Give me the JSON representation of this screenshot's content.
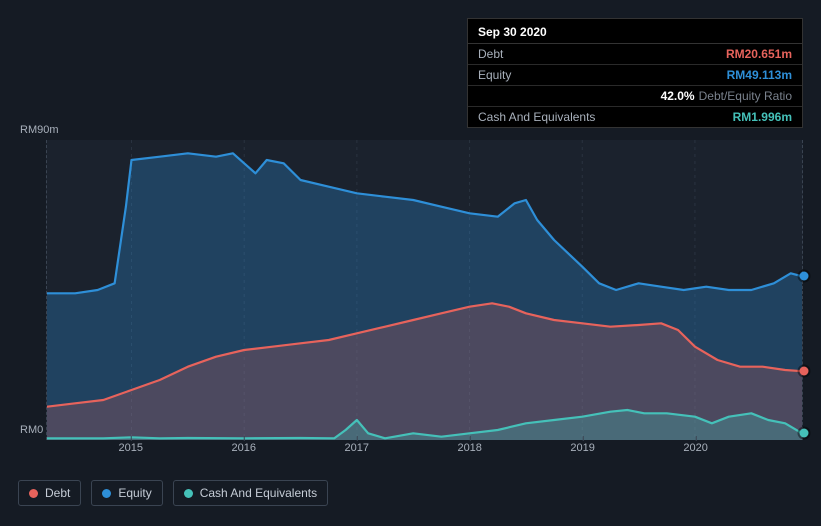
{
  "tooltip": {
    "date": "Sep 30 2020",
    "rows": [
      {
        "label": "Debt",
        "value": "RM20.651m",
        "colorKey": "debt"
      },
      {
        "label": "Equity",
        "value": "RM49.113m",
        "colorKey": "equity"
      },
      {
        "label": "",
        "pct": "42.0%",
        "pctLabel": "Debt/Equity Ratio"
      },
      {
        "label": "Cash And Equivalents",
        "value": "RM1.996m",
        "colorKey": "cash"
      }
    ]
  },
  "chart": {
    "type": "area",
    "background_color": "#1b222d",
    "page_bg": "#151b24",
    "y": {
      "min": 0,
      "max": 90,
      "top_label": "RM90m",
      "bottom_label": "RM0"
    },
    "x": {
      "min": 2014.25,
      "max": 2020.95,
      "ticks": [
        {
          "v": 2015,
          "label": "2015"
        },
        {
          "v": 2016,
          "label": "2016"
        },
        {
          "v": 2017,
          "label": "2017"
        },
        {
          "v": 2018,
          "label": "2018"
        },
        {
          "v": 2019,
          "label": "2019"
        },
        {
          "v": 2020,
          "label": "2020"
        }
      ]
    },
    "colors": {
      "debt": {
        "stroke": "#e7635c",
        "fill": "rgba(231,99,92,0.22)"
      },
      "equity": {
        "stroke": "#2e8fd8",
        "fill": "rgba(46,143,216,0.30)"
      },
      "cash": {
        "stroke": "#45c1b9",
        "fill": "rgba(69,193,185,0.28)"
      }
    },
    "line_width": 2.2,
    "series": [
      {
        "key": "equity",
        "name": "Equity",
        "points": [
          [
            2014.25,
            44
          ],
          [
            2014.5,
            44
          ],
          [
            2014.7,
            45
          ],
          [
            2014.85,
            47
          ],
          [
            2014.95,
            70
          ],
          [
            2015.0,
            84
          ],
          [
            2015.25,
            85
          ],
          [
            2015.5,
            86
          ],
          [
            2015.75,
            85
          ],
          [
            2015.9,
            86
          ],
          [
            2016.0,
            83
          ],
          [
            2016.1,
            80
          ],
          [
            2016.2,
            84
          ],
          [
            2016.35,
            83
          ],
          [
            2016.5,
            78
          ],
          [
            2016.75,
            76
          ],
          [
            2017.0,
            74
          ],
          [
            2017.25,
            73
          ],
          [
            2017.5,
            72
          ],
          [
            2017.75,
            70
          ],
          [
            2018.0,
            68
          ],
          [
            2018.25,
            67
          ],
          [
            2018.4,
            71
          ],
          [
            2018.5,
            72
          ],
          [
            2018.6,
            66
          ],
          [
            2018.75,
            60
          ],
          [
            2019.0,
            52
          ],
          [
            2019.15,
            47
          ],
          [
            2019.3,
            45
          ],
          [
            2019.5,
            47
          ],
          [
            2019.7,
            46
          ],
          [
            2019.9,
            45
          ],
          [
            2020.1,
            46
          ],
          [
            2020.3,
            45
          ],
          [
            2020.5,
            45
          ],
          [
            2020.7,
            47
          ],
          [
            2020.85,
            50
          ],
          [
            2020.95,
            49.1
          ]
        ]
      },
      {
        "key": "debt",
        "name": "Debt",
        "points": [
          [
            2014.25,
            10
          ],
          [
            2014.5,
            11
          ],
          [
            2014.75,
            12
          ],
          [
            2015.0,
            15
          ],
          [
            2015.25,
            18
          ],
          [
            2015.5,
            22
          ],
          [
            2015.75,
            25
          ],
          [
            2016.0,
            27
          ],
          [
            2016.25,
            28
          ],
          [
            2016.5,
            29
          ],
          [
            2016.75,
            30
          ],
          [
            2017.0,
            32
          ],
          [
            2017.25,
            34
          ],
          [
            2017.5,
            36
          ],
          [
            2017.75,
            38
          ],
          [
            2018.0,
            40
          ],
          [
            2018.2,
            41
          ],
          [
            2018.35,
            40
          ],
          [
            2018.5,
            38
          ],
          [
            2018.75,
            36
          ],
          [
            2019.0,
            35
          ],
          [
            2019.25,
            34
          ],
          [
            2019.5,
            34.5
          ],
          [
            2019.7,
            35
          ],
          [
            2019.85,
            33
          ],
          [
            2020.0,
            28
          ],
          [
            2020.2,
            24
          ],
          [
            2020.4,
            22
          ],
          [
            2020.6,
            22
          ],
          [
            2020.8,
            21
          ],
          [
            2020.95,
            20.65
          ]
        ]
      },
      {
        "key": "cash",
        "name": "Cash And Equivalents",
        "points": [
          [
            2014.25,
            0.5
          ],
          [
            2014.75,
            0.5
          ],
          [
            2015.0,
            0.8
          ],
          [
            2015.25,
            0.5
          ],
          [
            2015.5,
            0.6
          ],
          [
            2016.0,
            0.5
          ],
          [
            2016.5,
            0.6
          ],
          [
            2016.8,
            0.5
          ],
          [
            2016.9,
            3
          ],
          [
            2017.0,
            6
          ],
          [
            2017.1,
            2
          ],
          [
            2017.25,
            0.5
          ],
          [
            2017.5,
            2
          ],
          [
            2017.75,
            1
          ],
          [
            2018.0,
            2
          ],
          [
            2018.25,
            3
          ],
          [
            2018.5,
            5
          ],
          [
            2018.75,
            6
          ],
          [
            2019.0,
            7
          ],
          [
            2019.25,
            8.5
          ],
          [
            2019.4,
            9
          ],
          [
            2019.55,
            8
          ],
          [
            2019.75,
            8
          ],
          [
            2020.0,
            7
          ],
          [
            2020.15,
            5
          ],
          [
            2020.3,
            7
          ],
          [
            2020.5,
            8
          ],
          [
            2020.65,
            6
          ],
          [
            2020.8,
            5
          ],
          [
            2020.95,
            2.0
          ]
        ]
      }
    ]
  },
  "legend": [
    {
      "key": "debt",
      "label": "Debt"
    },
    {
      "key": "equity",
      "label": "Equity"
    },
    {
      "key": "cash",
      "label": "Cash And Equivalents"
    }
  ]
}
